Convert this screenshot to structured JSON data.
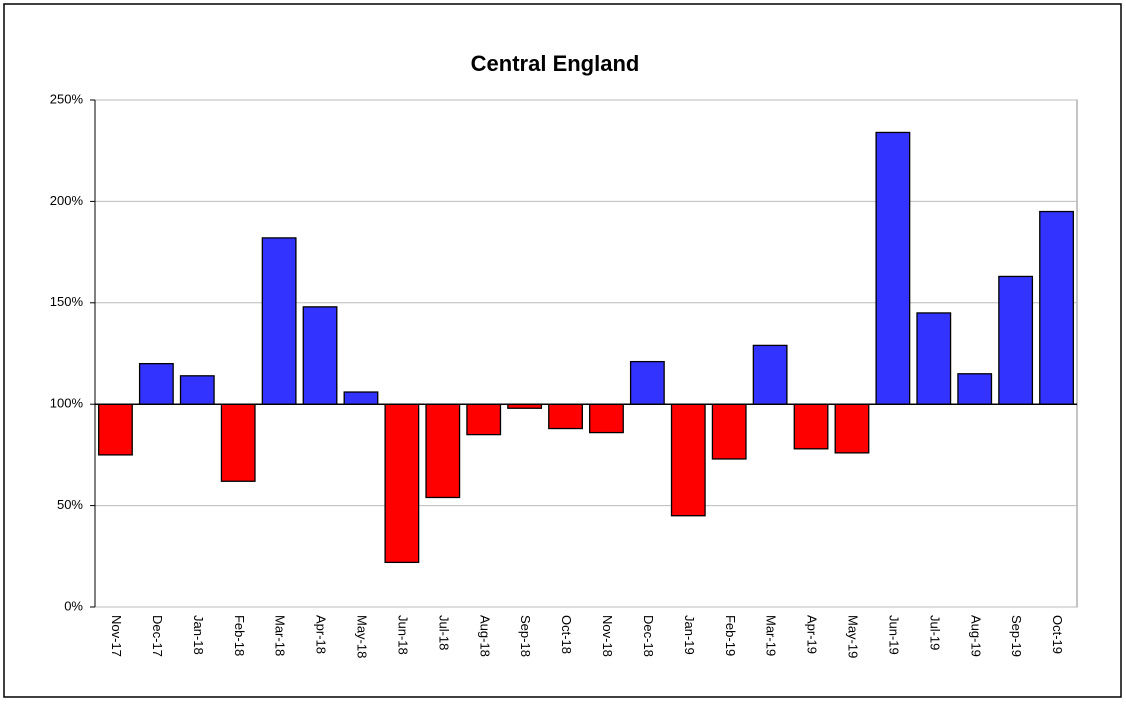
{
  "chart_data": {
    "type": "bar",
    "title": "Central England",
    "categories": [
      "Nov-17",
      "Dec-17",
      "Jan-18",
      "Feb-18",
      "Mar-18",
      "Apr-18",
      "May-18",
      "Jun-18",
      "Jul-18",
      "Aug-18",
      "Sep-18",
      "Oct-18",
      "Nov-18",
      "Dec-18",
      "Jan-19",
      "Feb-19",
      "Mar-19",
      "Apr-19",
      "May-19",
      "Jun-19",
      "Jul-19",
      "Aug-19",
      "Sep-19",
      "Oct-19"
    ],
    "values": [
      75,
      120,
      114,
      62,
      182,
      148,
      106,
      22,
      54,
      85,
      98,
      88,
      86,
      121,
      45,
      73,
      129,
      78,
      76,
      234,
      145,
      115,
      163,
      195
    ],
    "baseline": 100,
    "color_above": "#3333ff",
    "color_below": "#ff0000",
    "ylim": [
      0,
      250
    ],
    "yticks": [
      {
        "value": 0,
        "label": "0%"
      },
      {
        "value": 50,
        "label": "50%"
      },
      {
        "value": 100,
        "label": "100%"
      },
      {
        "value": 150,
        "label": "150%"
      },
      {
        "value": 200,
        "label": "200%"
      },
      {
        "value": 250,
        "label": "250%"
      }
    ],
    "grid": true
  }
}
